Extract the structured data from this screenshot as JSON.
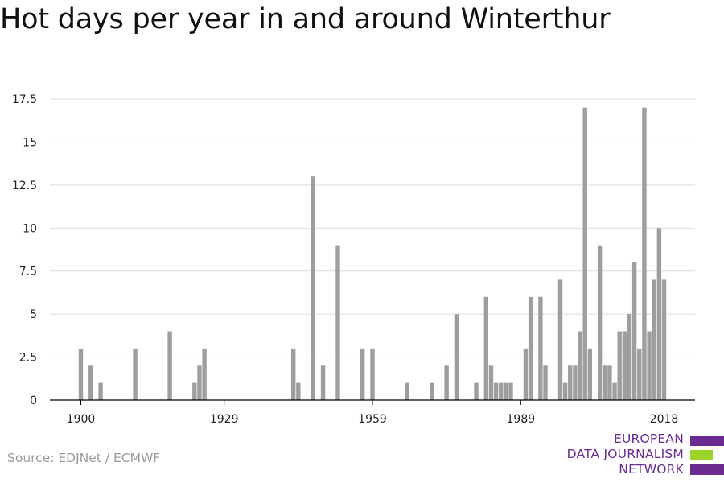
{
  "chart_data": {
    "type": "bar",
    "title": "Hot days per year in and around Winterthur",
    "xlabel": "",
    "ylabel": "",
    "x_range": [
      1900,
      2018
    ],
    "ylim": [
      0,
      17.5
    ],
    "y_ticks": [
      0,
      2.5,
      5,
      7.5,
      10,
      12.5,
      15,
      17.5
    ],
    "y_tick_labels": [
      "0",
      "2.5",
      "5",
      "7.5",
      "10",
      "12.5",
      "15",
      "17.5"
    ],
    "x_ticks": [
      1900,
      1929,
      1959,
      1989,
      2018
    ],
    "x_tick_labels": [
      "1900",
      "1929",
      "1959",
      "1989",
      "2018"
    ],
    "grid": true,
    "bar_color": "#9e9e9e",
    "series": [
      {
        "years": [
          1900,
          1902,
          1904,
          1911,
          1918,
          1923,
          1924,
          1925,
          1943,
          1944,
          1947,
          1949,
          1952,
          1957,
          1959,
          1966,
          1971,
          1974,
          1976,
          1980,
          1982,
          1983,
          1984,
          1985,
          1986,
          1987,
          1990,
          1991,
          1993,
          1994,
          1997,
          1998,
          1999,
          2000,
          2001,
          2002,
          2003,
          2005,
          2006,
          2007,
          2008,
          2009,
          2010,
          2011,
          2012,
          2013,
          2014,
          2015,
          2016,
          2017,
          2018
        ],
        "values": [
          3,
          2,
          1,
          3,
          4,
          1,
          2,
          3,
          3,
          1,
          13,
          2,
          9,
          3,
          3,
          1,
          1,
          2,
          5,
          1,
          6,
          2,
          1,
          1,
          1,
          1,
          3,
          6,
          6,
          2,
          7,
          1,
          2,
          2,
          4,
          17,
          3,
          9,
          2,
          2,
          1,
          4,
          4,
          5,
          8,
          3,
          17,
          4,
          7,
          10,
          7
        ]
      }
    ]
  },
  "source": "Source: EDJNet / ECMWF",
  "logo": {
    "line1": "EUROPEAN",
    "line2": "DATA JOURNALISM",
    "line3": "NETWORK",
    "purple": "#6a2c91",
    "green": "#9bd32a"
  }
}
